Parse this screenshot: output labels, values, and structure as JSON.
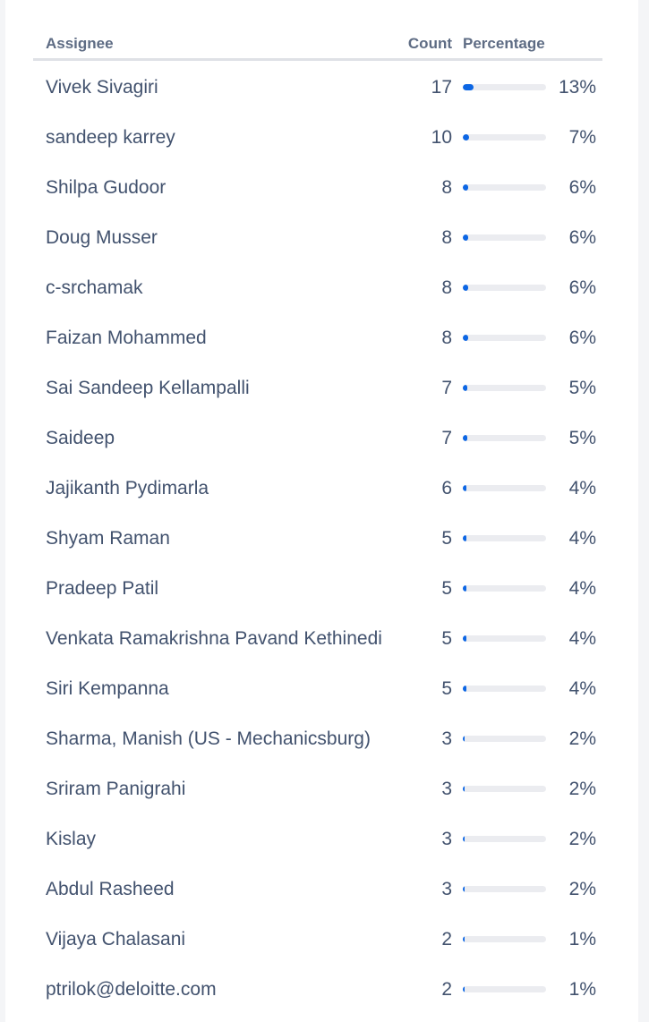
{
  "table": {
    "headers": {
      "assignee": "Assignee",
      "count": "Count",
      "percentage": "Percentage"
    },
    "accent_color": "#0c66e4",
    "rows": [
      {
        "name": "Vivek Sivagiri",
        "count": "17",
        "percentage": "13%",
        "fill": 0.13
      },
      {
        "name": "sandeep karrey",
        "count": "10",
        "percentage": "7%",
        "fill": 0.07
      },
      {
        "name": "Shilpa Gudoor",
        "count": "8",
        "percentage": "6%",
        "fill": 0.06
      },
      {
        "name": "Doug Musser",
        "count": "8",
        "percentage": "6%",
        "fill": 0.06
      },
      {
        "name": "c-srchamak",
        "count": "8",
        "percentage": "6%",
        "fill": 0.06
      },
      {
        "name": "Faizan Mohammed",
        "count": "8",
        "percentage": "6%",
        "fill": 0.06
      },
      {
        "name": "Sai Sandeep Kellampalli",
        "count": "7",
        "percentage": "5%",
        "fill": 0.05
      },
      {
        "name": "Saideep",
        "count": "7",
        "percentage": "5%",
        "fill": 0.05
      },
      {
        "name": "Jajikanth Pydimarla",
        "count": "6",
        "percentage": "4%",
        "fill": 0.04
      },
      {
        "name": "Shyam Raman",
        "count": "5",
        "percentage": "4%",
        "fill": 0.04
      },
      {
        "name": "Pradeep Patil",
        "count": "5",
        "percentage": "4%",
        "fill": 0.04
      },
      {
        "name": "Venkata Ramakrishna Pavand Kethinedi",
        "count": "5",
        "percentage": "4%",
        "fill": 0.04
      },
      {
        "name": "Siri Kempanna",
        "count": "5",
        "percentage": "4%",
        "fill": 0.04
      },
      {
        "name": "Sharma, Manish (US - Mechanicsburg)",
        "count": "3",
        "percentage": "2%",
        "fill": 0.02
      },
      {
        "name": "Sriram Panigrahi",
        "count": "3",
        "percentage": "2%",
        "fill": 0.02
      },
      {
        "name": "Kislay",
        "count": "3",
        "percentage": "2%",
        "fill": 0.02
      },
      {
        "name": "Abdul Rasheed",
        "count": "3",
        "percentage": "2%",
        "fill": 0.02
      },
      {
        "name": "Vijaya Chalasani",
        "count": "2",
        "percentage": "1%",
        "fill": 0.01
      },
      {
        "name": "ptrilok@deloitte.com",
        "count": "2",
        "percentage": "1%",
        "fill": 0.01
      }
    ]
  }
}
